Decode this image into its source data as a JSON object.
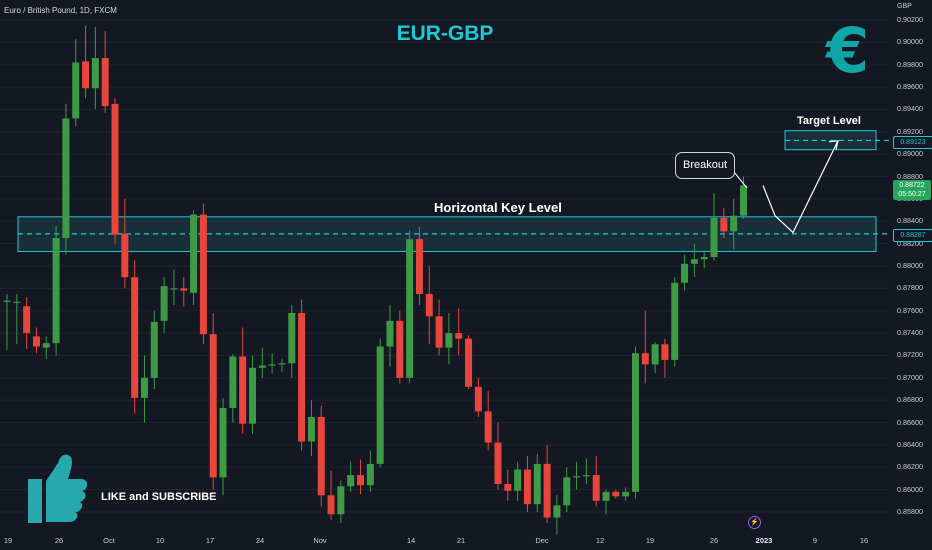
{
  "header": {
    "symbol": "Euro / British Pound, 1D, FXCM",
    "title": "EUR-GBP",
    "currency_glyph": "€"
  },
  "annotations": {
    "key_level_label": "Horizontal Key Level",
    "target_label": "Target Level",
    "breakout_label": "Breakout",
    "like_text": "LIKE and SUBSCRIBE"
  },
  "price_tags": {
    "key_level": "0.88287",
    "target": "0.89123",
    "last_price": "0.88722",
    "countdown": "05:50:27"
  },
  "colors": {
    "background": "#141823",
    "bullish": "#3d9a45",
    "bearish": "#e8463c",
    "accent": "#1ec9d6",
    "zone_fill": "#1b3440"
  },
  "icons": {
    "thumb": "thumbs-up-icon",
    "bolt": "lightning-icon"
  },
  "chart_data": {
    "type": "candlestick",
    "title": "EUR-GBP",
    "y_axis_title": "GBP",
    "y_ticks": [
      "0.90200",
      "0.90000",
      "0.89800",
      "0.89600",
      "0.89400",
      "0.89200",
      "0.89000",
      "0.88800",
      "0.88600",
      "0.88400",
      "0.88200",
      "0.88000",
      "0.87800",
      "0.87600",
      "0.87400",
      "0.87200",
      "0.87000",
      "0.86800",
      "0.86600",
      "0.86400",
      "0.86200",
      "0.86000",
      "0.85800"
    ],
    "ylim": [
      0.8575,
      0.9028
    ],
    "x_ticks": [
      {
        "label": "19",
        "bold": false
      },
      {
        "label": "26",
        "bold": false
      },
      {
        "label": "Oct",
        "bold": false
      },
      {
        "label": "10",
        "bold": false
      },
      {
        "label": "17",
        "bold": false
      },
      {
        "label": "24",
        "bold": false
      },
      {
        "label": "Nov",
        "bold": false
      },
      {
        "label": "14",
        "bold": false
      },
      {
        "label": "21",
        "bold": false
      },
      {
        "label": "Dec",
        "bold": false
      },
      {
        "label": "12",
        "bold": false
      },
      {
        "label": "19",
        "bold": false
      },
      {
        "label": "26",
        "bold": false
      },
      {
        "label": "2023",
        "bold": true
      },
      {
        "label": "9",
        "bold": false
      },
      {
        "label": "16",
        "bold": false
      }
    ],
    "key_level": {
      "price": 0.88287,
      "zone": [
        0.8813,
        0.8844
      ]
    },
    "target_level": {
      "price": 0.89123,
      "zone": [
        0.8904,
        0.8921
      ]
    },
    "projection": [
      [
        0,
        0.8872
      ],
      [
        1,
        0.8845
      ],
      [
        2,
        0.883
      ],
      [
        3,
        0.8912
      ]
    ],
    "candles": [
      {
        "o": 0.8769,
        "h": 0.8775,
        "l": 0.8725,
        "c": 0.8769
      },
      {
        "o": 0.8768,
        "h": 0.8775,
        "l": 0.873,
        "c": 0.8768
      },
      {
        "o": 0.8764,
        "h": 0.8772,
        "l": 0.8726,
        "c": 0.874
      },
      {
        "o": 0.8737,
        "h": 0.8745,
        "l": 0.8722,
        "c": 0.8728
      },
      {
        "o": 0.8727,
        "h": 0.8737,
        "l": 0.8717,
        "c": 0.8731
      },
      {
        "o": 0.8731,
        "h": 0.8836,
        "l": 0.872,
        "c": 0.8825
      },
      {
        "o": 0.8825,
        "h": 0.8945,
        "l": 0.881,
        "c": 0.8932
      },
      {
        "o": 0.8932,
        "h": 0.9003,
        "l": 0.8925,
        "c": 0.8982
      },
      {
        "o": 0.8983,
        "h": 0.9015,
        "l": 0.895,
        "c": 0.8959
      },
      {
        "o": 0.8959,
        "h": 0.9014,
        "l": 0.894,
        "c": 0.8986
      },
      {
        "o": 0.8986,
        "h": 0.901,
        "l": 0.8937,
        "c": 0.8943
      },
      {
        "o": 0.8945,
        "h": 0.895,
        "l": 0.882,
        "c": 0.8828
      },
      {
        "o": 0.8829,
        "h": 0.886,
        "l": 0.878,
        "c": 0.879
      },
      {
        "o": 0.879,
        "h": 0.8805,
        "l": 0.8668,
        "c": 0.8682
      },
      {
        "o": 0.8682,
        "h": 0.872,
        "l": 0.866,
        "c": 0.87
      },
      {
        "o": 0.87,
        "h": 0.876,
        "l": 0.869,
        "c": 0.875
      },
      {
        "o": 0.8751,
        "h": 0.879,
        "l": 0.874,
        "c": 0.8782
      },
      {
        "o": 0.878,
        "h": 0.8797,
        "l": 0.8765,
        "c": 0.878
      },
      {
        "o": 0.878,
        "h": 0.879,
        "l": 0.8764,
        "c": 0.8778
      },
      {
        "o": 0.8776,
        "h": 0.885,
        "l": 0.8765,
        "c": 0.8846
      },
      {
        "o": 0.8846,
        "h": 0.8856,
        "l": 0.873,
        "c": 0.8739
      },
      {
        "o": 0.8739,
        "h": 0.8758,
        "l": 0.86,
        "c": 0.8611
      },
      {
        "o": 0.8611,
        "h": 0.8682,
        "l": 0.8595,
        "c": 0.8673
      },
      {
        "o": 0.8673,
        "h": 0.8721,
        "l": 0.866,
        "c": 0.8719
      },
      {
        "o": 0.8719,
        "h": 0.8745,
        "l": 0.865,
        "c": 0.8659
      },
      {
        "o": 0.8659,
        "h": 0.872,
        "l": 0.865,
        "c": 0.8709
      },
      {
        "o": 0.8709,
        "h": 0.8727,
        "l": 0.87,
        "c": 0.8711
      },
      {
        "o": 0.8711,
        "h": 0.8722,
        "l": 0.8704,
        "c": 0.8712
      },
      {
        "o": 0.8712,
        "h": 0.8717,
        "l": 0.8705,
        "c": 0.8713
      },
      {
        "o": 0.8713,
        "h": 0.8765,
        "l": 0.87,
        "c": 0.8758
      },
      {
        "o": 0.8758,
        "h": 0.877,
        "l": 0.8635,
        "c": 0.8643
      },
      {
        "o": 0.8643,
        "h": 0.868,
        "l": 0.863,
        "c": 0.8665
      },
      {
        "o": 0.8665,
        "h": 0.8675,
        "l": 0.8585,
        "c": 0.8595
      },
      {
        "o": 0.8595,
        "h": 0.8617,
        "l": 0.8573,
        "c": 0.8578
      },
      {
        "o": 0.8578,
        "h": 0.8608,
        "l": 0.857,
        "c": 0.8603
      },
      {
        "o": 0.8603,
        "h": 0.8625,
        "l": 0.8598,
        "c": 0.8613
      },
      {
        "o": 0.8613,
        "h": 0.8627,
        "l": 0.8596,
        "c": 0.8604
      },
      {
        "o": 0.8604,
        "h": 0.8635,
        "l": 0.8598,
        "c": 0.8623
      },
      {
        "o": 0.8623,
        "h": 0.8735,
        "l": 0.862,
        "c": 0.8728
      },
      {
        "o": 0.8728,
        "h": 0.8765,
        "l": 0.871,
        "c": 0.8751
      },
      {
        "o": 0.8751,
        "h": 0.876,
        "l": 0.8695,
        "c": 0.87
      },
      {
        "o": 0.87,
        "h": 0.8832,
        "l": 0.8695,
        "c": 0.8824
      },
      {
        "o": 0.8824,
        "h": 0.8835,
        "l": 0.8765,
        "c": 0.8775
      },
      {
        "o": 0.8775,
        "h": 0.88,
        "l": 0.873,
        "c": 0.8755
      },
      {
        "o": 0.8755,
        "h": 0.877,
        "l": 0.872,
        "c": 0.8727
      },
      {
        "o": 0.8727,
        "h": 0.8758,
        "l": 0.8712,
        "c": 0.874
      },
      {
        "o": 0.874,
        "h": 0.8762,
        "l": 0.872,
        "c": 0.8735
      },
      {
        "o": 0.8735,
        "h": 0.8738,
        "l": 0.869,
        "c": 0.8692
      },
      {
        "o": 0.8692,
        "h": 0.87,
        "l": 0.8665,
        "c": 0.867
      },
      {
        "o": 0.867,
        "h": 0.8688,
        "l": 0.8635,
        "c": 0.8642
      },
      {
        "o": 0.8642,
        "h": 0.866,
        "l": 0.86,
        "c": 0.8605
      },
      {
        "o": 0.8605,
        "h": 0.8618,
        "l": 0.859,
        "c": 0.8599
      },
      {
        "o": 0.8599,
        "h": 0.8625,
        "l": 0.859,
        "c": 0.8618
      },
      {
        "o": 0.8618,
        "h": 0.863,
        "l": 0.858,
        "c": 0.8587
      },
      {
        "o": 0.8587,
        "h": 0.8632,
        "l": 0.858,
        "c": 0.8623
      },
      {
        "o": 0.8623,
        "h": 0.864,
        "l": 0.857,
        "c": 0.8575
      },
      {
        "o": 0.8575,
        "h": 0.8595,
        "l": 0.856,
        "c": 0.8586
      },
      {
        "o": 0.8586,
        "h": 0.862,
        "l": 0.858,
        "c": 0.8611
      },
      {
        "o": 0.8611,
        "h": 0.8625,
        "l": 0.86,
        "c": 0.8612
      },
      {
        "o": 0.8612,
        "h": 0.8628,
        "l": 0.8605,
        "c": 0.8613
      },
      {
        "o": 0.8613,
        "h": 0.863,
        "l": 0.8585,
        "c": 0.859
      },
      {
        "o": 0.859,
        "h": 0.86,
        "l": 0.8578,
        "c": 0.8598
      },
      {
        "o": 0.8598,
        "h": 0.86,
        "l": 0.8592,
        "c": 0.8594
      },
      {
        "o": 0.8594,
        "h": 0.8602,
        "l": 0.859,
        "c": 0.8598
      },
      {
        "o": 0.8598,
        "h": 0.8728,
        "l": 0.8592,
        "c": 0.8722
      },
      {
        "o": 0.8722,
        "h": 0.876,
        "l": 0.8695,
        "c": 0.8712
      },
      {
        "o": 0.8712,
        "h": 0.8732,
        "l": 0.8704,
        "c": 0.873
      },
      {
        "o": 0.873,
        "h": 0.8735,
        "l": 0.87,
        "c": 0.8716
      },
      {
        "o": 0.8716,
        "h": 0.879,
        "l": 0.871,
        "c": 0.8785
      },
      {
        "o": 0.8785,
        "h": 0.881,
        "l": 0.8778,
        "c": 0.8802
      },
      {
        "o": 0.8802,
        "h": 0.882,
        "l": 0.879,
        "c": 0.8806
      },
      {
        "o": 0.8806,
        "h": 0.8813,
        "l": 0.8798,
        "c": 0.8808
      },
      {
        "o": 0.8808,
        "h": 0.8865,
        "l": 0.8805,
        "c": 0.8843
      },
      {
        "o": 0.8843,
        "h": 0.8852,
        "l": 0.8825,
        "c": 0.8831
      },
      {
        "o": 0.8831,
        "h": 0.886,
        "l": 0.8815,
        "c": 0.8845
      },
      {
        "o": 0.8845,
        "h": 0.888,
        "l": 0.8842,
        "c": 0.8872
      }
    ]
  }
}
